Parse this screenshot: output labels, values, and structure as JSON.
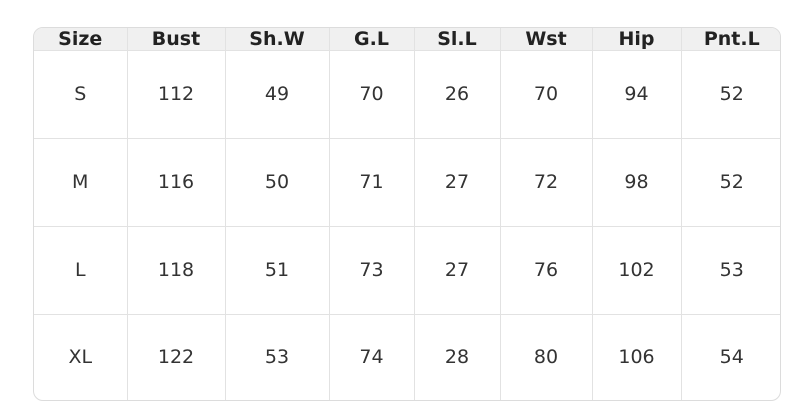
{
  "table": {
    "header": [
      "Size",
      "Bust",
      "Sh.W",
      "G.L",
      "Sl.L",
      "Wst",
      "Hip",
      "Pnt.L"
    ],
    "rows": [
      [
        "S",
        112,
        49,
        70,
        26,
        70,
        94,
        52
      ],
      [
        "M",
        116,
        50,
        71,
        27,
        72,
        98,
        52
      ],
      [
        "L",
        118,
        51,
        73,
        27,
        76,
        102,
        53
      ],
      [
        "XL",
        122,
        53,
        74,
        28,
        80,
        106,
        54
      ]
    ]
  }
}
